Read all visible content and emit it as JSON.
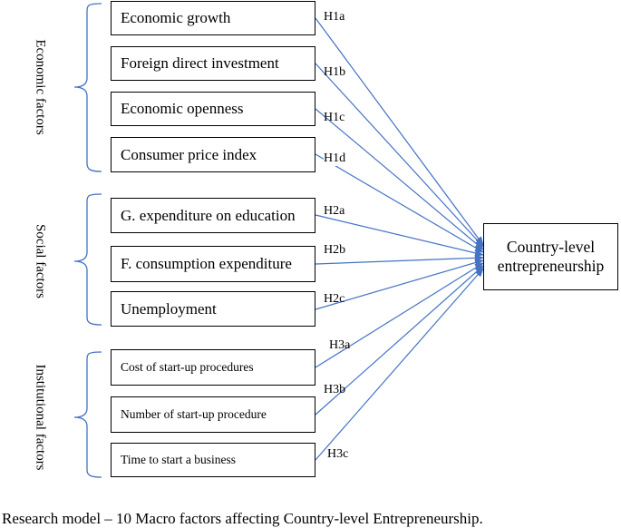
{
  "groups": [
    {
      "label": "Economic factors"
    },
    {
      "label": "Social factors"
    },
    {
      "label": "Institutional factors"
    }
  ],
  "factors": [
    {
      "label": "Economic growth",
      "hypothesis": "H1a"
    },
    {
      "label": "Foreign direct investment",
      "hypothesis": "H1b"
    },
    {
      "label": "Economic openness",
      "hypothesis": "H1c"
    },
    {
      "label": "Consumer price index",
      "hypothesis": "H1d"
    },
    {
      "label": "G. expenditure on education",
      "hypothesis": "H2a"
    },
    {
      "label": "F. consumption expenditure",
      "hypothesis": "H2b"
    },
    {
      "label": "Unemployment",
      "hypothesis": "H2c"
    },
    {
      "label": "Cost of start-up procedures",
      "hypothesis": "H3a"
    },
    {
      "label": "Number of start-up procedure",
      "hypothesis": "H3b"
    },
    {
      "label": "Time to start a business",
      "hypothesis": "H3c"
    }
  ],
  "target": {
    "label": "Country-level entrepreneurship"
  },
  "caption": "Research model – 10 Macro factors affecting Country-level Entrepreneurship.",
  "colors": {
    "arrow": "#4472c4",
    "bracket": "#4472c4",
    "border": "#000000"
  }
}
